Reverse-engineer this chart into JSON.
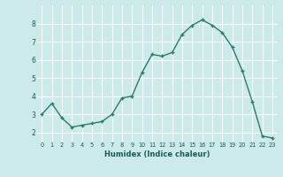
{
  "x": [
    0,
    1,
    2,
    3,
    4,
    5,
    6,
    7,
    8,
    9,
    10,
    11,
    12,
    13,
    14,
    15,
    16,
    17,
    18,
    19,
    20,
    21,
    22,
    23
  ],
  "y": [
    3.0,
    3.6,
    2.8,
    2.3,
    2.4,
    2.5,
    2.6,
    3.0,
    3.9,
    4.0,
    5.3,
    6.3,
    6.2,
    6.4,
    7.4,
    7.9,
    8.2,
    7.9,
    7.5,
    6.7,
    5.4,
    3.7,
    1.8,
    1.7
  ],
  "xlabel": "Humidex (Indice chaleur)",
  "ylim": [
    1.5,
    9.0
  ],
  "xlim": [
    -0.5,
    23.5
  ],
  "yticks": [
    2,
    3,
    4,
    5,
    6,
    7,
    8
  ],
  "xticks": [
    0,
    1,
    2,
    3,
    4,
    5,
    6,
    7,
    8,
    9,
    10,
    11,
    12,
    13,
    14,
    15,
    16,
    17,
    18,
    19,
    20,
    21,
    22,
    23
  ],
  "line_color": "#2d7a6a",
  "marker_color": "#2d7a6a",
  "bg_color": "#cceaea",
  "grid_color": "#ffffff",
  "axis_label_color": "#1a5a5a"
}
